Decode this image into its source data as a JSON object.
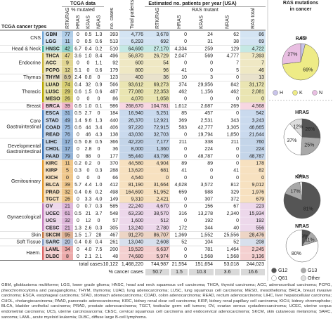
{
  "header": {
    "tcga": "TCGA data",
    "mutated": "% mutated",
    "estimated": "Estimated no. patients per year (USA)",
    "ras_mutant": "RAS mutant",
    "cancer_types": "TCGA cancer types",
    "columns": [
      "RTK/RAS",
      "HRAS",
      "KRAS",
      "NRAS",
      "no. cases",
      "Total patients",
      "RTK/RAS",
      "HRAS",
      "KRAS",
      "NRAS",
      "RAS total"
    ]
  },
  "groups": [
    {
      "label": [
        "CNS"
      ],
      "color": "#6fa6d6",
      "rows": [
        [
          "GBM",
          "77",
          "0",
          "0.5",
          "1.3",
          "393",
          "4,776",
          "3,678",
          "0",
          "24",
          "62",
          "86"
        ],
        [
          "LGG",
          "11",
          "0",
          "0.5",
          "0.6",
          "513",
          "6,293",
          "692",
          "0",
          "31",
          "38",
          "69"
        ]
      ]
    },
    {
      "label": [
        "Head & Neck"
      ],
      "color": "#3fb2a4",
      "rows": [
        [
          "HNSC",
          "42",
          "6.7",
          "0.4",
          "0.2",
          "510",
          "64,690",
          "27,170",
          "4,334",
          "259",
          "129",
          "4,722"
        ]
      ]
    },
    {
      "label": [
        "Endocrine"
      ],
      "color": "#c9b43a",
      "rows": [
        [
          "THCA",
          "47",
          "3.6",
          "1.0",
          "8.4",
          "496",
          "56,870",
          "26,729",
          "2,047",
          "569",
          "4,777",
          "7,393"
        ],
        [
          "ACC",
          "9",
          "0",
          "0",
          "1.1",
          "92",
          "600",
          "54",
          "0",
          "0",
          "7",
          "7"
        ],
        [
          "PCPG",
          "12",
          "5.1",
          "0",
          "0.6",
          "179",
          "800",
          "96",
          "41",
          "0",
          "5",
          "46"
        ]
      ]
    },
    {
      "label": [
        "Thymus"
      ],
      "color": "#b59f55",
      "rows": [
        [
          "THYM",
          "8.9",
          "2.4",
          "0.8",
          "0",
          "123",
          "400",
          "36",
          "10",
          "3",
          "0",
          "13"
        ]
      ]
    },
    {
      "label": [
        "Thoracic"
      ],
      "color": "#b8a800",
      "rows": [
        [
          "LUAD",
          "74",
          "0.4",
          "32",
          "0.9",
          "566",
          "93,612",
          "69,273",
          "374",
          "29,956",
          "842",
          "31,172"
        ],
        [
          "LUSC",
          "29",
          "0.6",
          "1.5",
          "0.6",
          "487",
          "77,080",
          "22,353",
          "462",
          "1,156",
          "462",
          "2,081"
        ],
        [
          "MESO",
          "26",
          "0",
          "0",
          "0",
          "86",
          "4,070",
          "1,058",
          "0",
          "0",
          "0",
          "0"
        ]
      ]
    },
    {
      "label": [
        "Breast"
      ],
      "color": "#e47b9f",
      "rows": [
        [
          "BRCA",
          "39",
          "0.6",
          "1.0",
          "0.1",
          "986",
          "268,670",
          "104,781",
          "1,612",
          "2,687",
          "269",
          "4,568"
        ]
      ]
    },
    {
      "label": [
        "Core",
        "Gastrointestinal"
      ],
      "color": "#4f86c6",
      "rows": [
        [
          "ESCA",
          "31",
          "0.5",
          "2.7",
          "0",
          "184",
          "16,940",
          "5,251",
          "85",
          "457",
          "0",
          "542"
        ],
        [
          "STAD",
          "49",
          "1.4",
          "9.6",
          "1.3",
          "440",
          "26,370",
          "12,921",
          "369",
          "2,531",
          "343",
          "3,243"
        ],
        [
          "COAD",
          "75",
          "0.6",
          "44",
          "3.4",
          "406",
          "97,220",
          "72,915",
          "583",
          "42,777",
          "3,305",
          "46,665"
        ],
        [
          "READ",
          "76",
          "0",
          "46",
          "4.3",
          "138",
          "43,030",
          "32,703",
          "0",
          "19,794",
          "1,850",
          "21,644"
        ]
      ]
    },
    {
      "label": [
        "Developmental",
        "Gastrointestinal"
      ],
      "color": "#3a74b6",
      "rows": [
        [
          "LIHC",
          "17",
          "0.5",
          "0.8",
          "0.5",
          "366",
          "42,220",
          "7,177",
          "211",
          "338",
          "211",
          "760"
        ],
        [
          "CHOL",
          "17",
          "0",
          "2.8",
          "0",
          "36",
          "8,000",
          "1,360",
          "0",
          "224",
          "0",
          "224"
        ],
        [
          "PAAD",
          "79",
          "0",
          "88",
          "0",
          "177",
          "55,440",
          "43,798",
          "0",
          "48,787",
          "0",
          "48,787"
        ]
      ]
    },
    {
      "label": [
        "Genitourinary"
      ],
      "color": "#e39a30",
      "rows": [
        [
          "KIRC",
          "11",
          "0.2",
          "0.2",
          "0",
          "370",
          "44,580",
          "4,904",
          "89",
          "89",
          "0",
          "178"
        ],
        [
          "KIRP",
          "5",
          "0.3",
          "0",
          "0.3",
          "288",
          "13,620",
          "681",
          "41",
          "0",
          "41",
          "82"
        ],
        [
          "KICH",
          "0",
          "0",
          "0",
          "0",
          "66",
          "4,540",
          "0",
          "0",
          "0",
          "0",
          "0"
        ],
        [
          "BLCA",
          "39",
          "5.7",
          "4.4",
          "1.0",
          "412",
          "81,190",
          "31,664",
          "4,628",
          "3,572",
          "812",
          "9,012"
        ],
        [
          "PRAD",
          "32",
          "0.4",
          "0.6",
          "0.2",
          "498",
          "164,690",
          "51,952",
          "659",
          "988",
          "329",
          "1,976"
        ],
        [
          "TGCT",
          "26",
          "0",
          "3.3",
          "4.0",
          "149",
          "9,310",
          "2,421",
          "0",
          "307",
          "372",
          "679"
        ]
      ]
    },
    {
      "label": [
        "Gynaecological"
      ],
      "color": "#c57dbd",
      "rows": [
        [
          "OV",
          "21",
          "0",
          "0.7",
          "0.3",
          "585",
          "22,240",
          "4,670",
          "0",
          "156",
          "67",
          "223"
        ],
        [
          "UCEC",
          "61",
          "0.5",
          "21",
          "3.7",
          "548",
          "63,230",
          "38,570",
          "316",
          "13,278",
          "2,340",
          "15,934"
        ],
        [
          "UCS",
          "32",
          "0",
          "12",
          "0",
          "57",
          "1,600",
          "512",
          "0",
          "192",
          "0",
          "192"
        ],
        [
          "CESC",
          "21",
          "1.3",
          "2.6",
          "0.3",
          "305",
          "13,240",
          "2,780",
          "172",
          "344",
          "40",
          "556"
        ]
      ]
    },
    {
      "label": [
        "Skin"
      ],
      "color": "#c27440",
      "rows": [
        [
          "SKCM",
          "95",
          "1.5",
          "1.7",
          "28",
          "467",
          "91,270",
          "86,707",
          "1,369",
          "1,552",
          "25,556",
          "28,476"
        ]
      ]
    },
    {
      "label": [
        "Soft Tissue"
      ],
      "color": "#7f98c4",
      "rows": [
        [
          "SARC",
          "20",
          "0.4",
          "0.8",
          "0.4",
          "261",
          "13,040",
          "2,608",
          "52",
          "104",
          "52",
          "208"
        ]
      ]
    },
    {
      "label": [
        "Haem."
      ],
      "color": "#dc6464",
      "rows": [
        [
          "LAML",
          "34",
          "0",
          "4.0",
          "7.5",
          "200",
          "19,520",
          "6,637",
          "0",
          "781",
          "1,464",
          "2,245"
        ],
        [
          "DLBC",
          "8",
          "0",
          "2.1",
          "2.1",
          "48",
          "74,680",
          "5,974",
          "0",
          "1,568",
          "1,568",
          "3,136"
        ]
      ]
    }
  ],
  "totals": {
    "label": "total cases",
    "cells": [
      "10,122",
      "1,468,220",
      "744,987",
      "21,554",
      "151,654",
      "53,018",
      "244,023"
    ]
  },
  "percent": {
    "label": "% cancer cases",
    "cells": [
      "50.7",
      "1.5",
      "10.3",
      "3.6",
      "16.6"
    ]
  },
  "side": {
    "title": [
      "RAS mutations",
      "in cancer"
    ],
    "pies": [
      {
        "title": "RAS",
        "values": [
          4,
          69,
          27
        ],
        "value_labels": [
          "4%",
          "69%",
          "27%"
        ],
        "colors": [
          "#c9c4ea",
          "#eeeb86",
          "#e9bfe2"
        ]
      },
      {
        "title": "HRAS",
        "values": [
          26,
          25,
          37,
          12
        ],
        "value_labels": [
          "26%",
          "25%",
          "37%",
          "12%"
        ],
        "colors": [
          "#555555",
          "#a9a9a9",
          "#ffffff",
          "#dddddd"
        ]
      },
      {
        "title": "KRAS",
        "values": [
          81,
          17,
          2
        ],
        "value_labels": [
          "81%",
          "17%",
          "2%"
        ],
        "colors": [
          "#555555",
          "#a9a9a9",
          "#ffffff"
        ]
      },
      {
        "title": "NRAS",
        "values": [
          9,
          11,
          80
        ],
        "value_labels": [
          "9%",
          "11%",
          "80%"
        ],
        "colors": [
          "#555555",
          "#a9a9a9",
          "#ffffff"
        ]
      }
    ],
    "legends": [
      {
        "labels": [
          "H",
          "K",
          "N"
        ],
        "colors": [
          "#c9c4ea",
          "#eeeb86",
          "#e9bfe2"
        ]
      },
      {
        "labels": [
          "G12",
          "G13",
          "Q61",
          "Other"
        ],
        "colors": [
          "#555555",
          "#a9a9a9",
          "#ffffff",
          "#dddddd"
        ]
      }
    ]
  },
  "footnote": "GBM, glioblastoma multiforme; LGG, lower grade glioma; HNSC, head and neck squamous cell carcinoma; THCA, thyroid carcinoma; ACC, adrenocortical carcinoma; PCPG, pheochromocytoma and paraganglioma; THYM, thymoma; LUAD, lung adenocarcinoma; LUSC, lung squamous cell carcinoma; MESO, mesothelioma; BRCA, breast invasive carcinoma; ESCA, esophageal carcinoma; STAD, stomach adenocarcinoma; COAD, colon adenocarcinoma; READ, rectum adenocarcinoma; LIHC, liver hepatocellular carcinoma; CHOL, cholangiocarcinoma; PAAD, pancreatic adenocarcinoma; KIRC, kidney renal clear cell carcinoma; KIRP, kidney renal papillary cell carcinoma; KICH, kidney chromophobe; BLCA, bladder urothelial carcinoma; PRAD, prostate adenocarcinoma; TGCT, testicular germ cell tumors; OV, ovarian serous cystadenocarcinoma; UCEC, uterine corpus endometrial carcinoma; UCS, uterine carcinosarcoma; CESC, cervical squamous cell carcinoma and endocervical adenocarcinoma; SKCM, skin cutaneous melanoma; SARC, sarcoma; LAML, acute myeloid leukemia; DLBC, diffuse large B-cell lymphoma."
}
